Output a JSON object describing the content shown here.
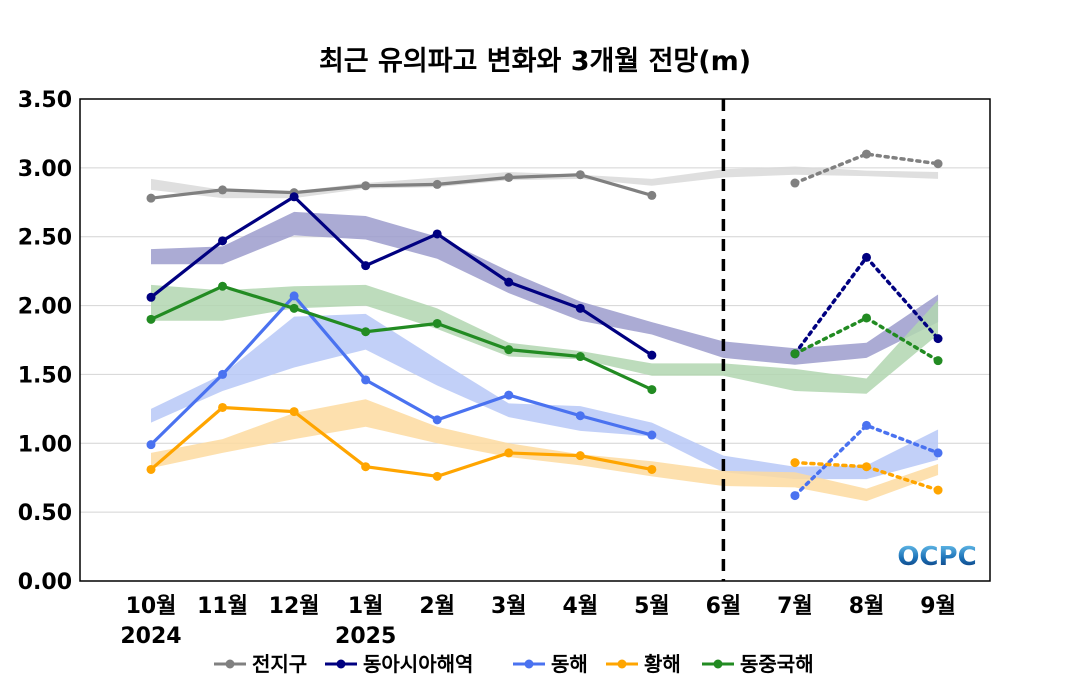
{
  "chart_data": {
    "type": "line",
    "title": "최근 유의파고 변화와 3개월 전망(m)",
    "categories": [
      "10월",
      "11월",
      "12월",
      "1월",
      "2월",
      "3월",
      "4월",
      "5월",
      "6월",
      "7월",
      "8월",
      "9월"
    ],
    "year_labels": [
      {
        "category": "10월",
        "label": "2024"
      },
      {
        "category": "1월",
        "label": "2025"
      }
    ],
    "ylim": [
      0,
      3.5
    ],
    "yticks": [
      "0.00",
      "0.50",
      "1.00",
      "1.50",
      "2.00",
      "2.50",
      "3.00",
      "3.50"
    ],
    "ytick_values": [
      0,
      0.5,
      1.0,
      1.5,
      2.0,
      2.5,
      3.0,
      3.5
    ],
    "divider_after_category": "6월",
    "grid": "horizontal",
    "legend_position": "bottom",
    "series": [
      {
        "name": "전지구",
        "color": "#808080",
        "band_color": "#d9d9d9",
        "observed": [
          2.78,
          2.84,
          2.82,
          2.87,
          2.88,
          2.93,
          2.95,
          2.8,
          null,
          null,
          null,
          null
        ],
        "forecast": [
          null,
          null,
          null,
          null,
          null,
          null,
          null,
          null,
          null,
          2.89,
          3.1,
          3.03
        ],
        "band_lower": [
          2.84,
          2.78,
          2.78,
          2.85,
          2.86,
          2.91,
          2.92,
          2.87,
          2.93,
          2.95,
          2.94,
          2.92
        ],
        "band_upper": [
          2.92,
          2.84,
          2.83,
          2.89,
          2.93,
          2.97,
          2.95,
          2.92,
          2.99,
          3.01,
          2.98,
          2.97
        ]
      },
      {
        "name": "동아시아해역",
        "color": "#000080",
        "band_color": "#9c9ccc",
        "observed": [
          2.06,
          2.47,
          2.79,
          2.29,
          2.52,
          2.17,
          1.98,
          1.64,
          null,
          null,
          null,
          null
        ],
        "forecast": [
          null,
          null,
          null,
          null,
          null,
          null,
          null,
          null,
          null,
          1.65,
          2.35,
          1.76
        ],
        "band_lower": [
          2.3,
          2.3,
          2.51,
          2.48,
          2.34,
          2.09,
          1.89,
          1.79,
          1.62,
          1.57,
          1.62,
          1.88
        ],
        "band_upper": [
          2.41,
          2.43,
          2.68,
          2.65,
          2.5,
          2.25,
          2.03,
          1.88,
          1.74,
          1.69,
          1.73,
          2.08
        ]
      },
      {
        "name": "동해",
        "color": "#4a72f0",
        "band_color": "#b7c8f7",
        "observed": [
          0.99,
          1.5,
          2.07,
          1.46,
          1.17,
          1.35,
          1.2,
          1.06,
          null,
          null,
          null,
          null
        ],
        "forecast": [
          null,
          null,
          null,
          null,
          null,
          null,
          null,
          null,
          null,
          0.62,
          1.13,
          0.93
        ],
        "band_lower": [
          1.15,
          1.38,
          1.55,
          1.68,
          1.42,
          1.19,
          1.09,
          1.05,
          0.79,
          0.74,
          0.74,
          0.88
        ],
        "band_upper": [
          1.25,
          1.5,
          1.92,
          1.94,
          1.61,
          1.29,
          1.27,
          1.15,
          0.91,
          0.83,
          0.84,
          1.1
        ]
      },
      {
        "name": "황해",
        "color": "#ffa500",
        "band_color": "#fddba0",
        "observed": [
          0.81,
          1.26,
          1.23,
          0.83,
          0.76,
          0.93,
          0.91,
          0.81,
          null,
          null,
          null,
          null
        ],
        "forecast": [
          null,
          null,
          null,
          null,
          null,
          null,
          null,
          null,
          null,
          0.86,
          0.83,
          0.66
        ],
        "band_lower": [
          0.82,
          0.93,
          1.03,
          1.12,
          1.0,
          0.9,
          0.84,
          0.76,
          0.69,
          0.68,
          0.58,
          0.77
        ],
        "band_upper": [
          0.93,
          1.03,
          1.22,
          1.32,
          1.12,
          1.0,
          0.92,
          0.87,
          0.8,
          0.79,
          0.67,
          0.85
        ]
      },
      {
        "name": "동중국해",
        "color": "#228b22",
        "band_color": "#b2d6b0",
        "observed": [
          1.9,
          2.14,
          1.98,
          1.81,
          1.87,
          1.68,
          1.63,
          1.39,
          null,
          null,
          null,
          null
        ],
        "forecast": [
          null,
          null,
          null,
          null,
          null,
          null,
          null,
          null,
          null,
          1.65,
          1.91,
          1.6
        ],
        "band_lower": [
          1.89,
          1.89,
          1.98,
          2.0,
          1.83,
          1.63,
          1.61,
          1.49,
          1.49,
          1.38,
          1.36,
          1.79
        ],
        "band_upper": [
          2.15,
          2.11,
          2.14,
          2.15,
          1.98,
          1.73,
          1.67,
          1.58,
          1.58,
          1.54,
          1.47,
          2.04
        ]
      }
    ]
  },
  "logo_text": "OCPC"
}
